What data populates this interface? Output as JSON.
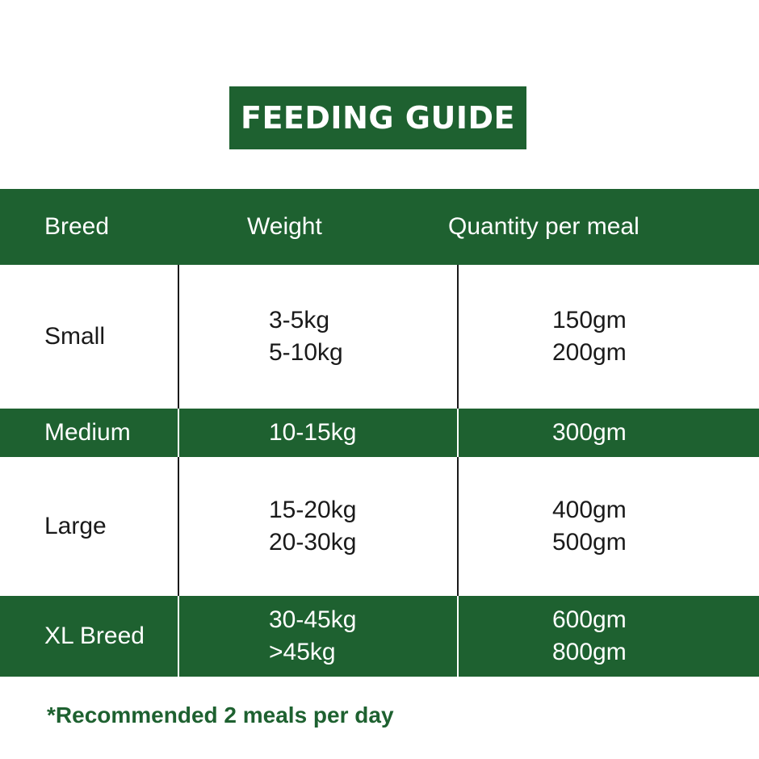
{
  "title": "FEEDING GUIDE",
  "colors": {
    "accent_green": "#1e6130",
    "text_dark": "#1a1a1a",
    "background": "#ffffff"
  },
  "table": {
    "headers": [
      "Breed",
      "Weight",
      "Quantity per meal"
    ],
    "rows": [
      {
        "breed": "Small",
        "weights": [
          "3-5kg",
          "5-10kg"
        ],
        "quantities": [
          "150gm",
          "200gm"
        ]
      },
      {
        "breed": "Medium",
        "weights": [
          "10-15kg"
        ],
        "quantities": [
          "300gm"
        ]
      },
      {
        "breed": "Large",
        "weights": [
          "15-20kg",
          "20-30kg"
        ],
        "quantities": [
          "400gm",
          "500gm"
        ]
      },
      {
        "breed": "XL Breed",
        "weights": [
          "30-45kg",
          ">45kg"
        ],
        "quantities": [
          "600gm",
          "800gm"
        ]
      }
    ]
  },
  "footnote": "*Recommended 2 meals per day"
}
